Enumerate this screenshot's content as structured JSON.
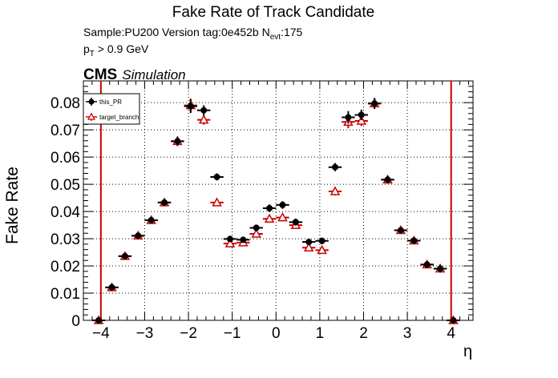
{
  "chart_data": {
    "type": "scatter",
    "title": "Fake Rate of Track Candidate",
    "subtitle_sample": "Sample:PU200   Version tag:0e452b  N",
    "subtitle_nevt_sub": "evt",
    "subtitle_nevt_val": ":175",
    "pt_p": "p",
    "pt_sub": "T",
    "pt_rest": " > 0.9 GeV",
    "cms_label": "CMS",
    "simulation_label": "Simulation",
    "xlabel": "η",
    "ylabel": "Fake Rate",
    "xlim": [
      -4.4,
      4.5
    ],
    "ylim": [
      0,
      0.088
    ],
    "xticks": [
      -4,
      -3,
      -2,
      -1,
      0,
      1,
      2,
      3,
      4
    ],
    "xtick_labels": [
      "−4",
      "−3",
      "−2",
      "−1",
      "0",
      "1",
      "2",
      "3",
      "4"
    ],
    "yticks": [
      0,
      0.01,
      0.02,
      0.03,
      0.04,
      0.05,
      0.06,
      0.07,
      0.08
    ],
    "ytick_labels": [
      "0",
      "0.01",
      "0.02",
      "0.03",
      "0.04",
      "0.05",
      "0.06",
      "0.07",
      "0.08"
    ],
    "grid": true,
    "legend_position": "top-left",
    "vlines": [
      -4.0,
      4.0
    ],
    "x": [
      -4.05,
      -3.75,
      -3.45,
      -3.15,
      -2.85,
      -2.55,
      -2.25,
      -1.95,
      -1.65,
      -1.35,
      -1.05,
      -0.75,
      -0.45,
      -0.15,
      0.15,
      0.45,
      0.75,
      1.05,
      1.35,
      1.65,
      1.95,
      2.25,
      2.55,
      2.85,
      3.15,
      3.45,
      3.75,
      4.05
    ],
    "x_err": 0.15,
    "series": [
      {
        "name": "this_PR",
        "color": "#000000",
        "marker": "circle",
        "values": [
          0.0,
          0.0121,
          0.0236,
          0.0311,
          0.0368,
          0.0433,
          0.0658,
          0.0787,
          0.0772,
          0.0527,
          0.0299,
          0.0296,
          0.034,
          0.0412,
          0.0424,
          0.0361,
          0.0288,
          0.0292,
          0.0563,
          0.0746,
          0.0755,
          0.0797,
          0.0517,
          0.0331,
          0.0293,
          0.0205,
          0.019,
          0.0
        ],
        "errors": [
          0.0003,
          0.0012,
          0.001,
          0.001,
          0.0011,
          0.0012,
          0.0017,
          0.0025,
          0.0018,
          0.0013,
          0.0011,
          0.0011,
          0.0012,
          0.0014,
          0.0014,
          0.0013,
          0.0012,
          0.0012,
          0.0015,
          0.0023,
          0.0019,
          0.002,
          0.0014,
          0.0012,
          0.0011,
          0.0012,
          0.0014,
          0.0003
        ]
      },
      {
        "name": "target_branch",
        "color": "#cc0000",
        "marker": "open-triangle",
        "values": [
          0.0,
          0.0121,
          0.0236,
          0.0311,
          0.0368,
          0.0433,
          0.0658,
          0.079,
          0.0737,
          0.0433,
          0.0282,
          0.0286,
          0.0318,
          0.0373,
          0.0378,
          0.035,
          0.0267,
          0.0258,
          0.0474,
          0.0729,
          0.0733,
          0.0797,
          0.0517,
          0.0331,
          0.0293,
          0.0205,
          0.019,
          0.0
        ],
        "errors": [
          0.0003,
          0.0012,
          0.001,
          0.001,
          0.0011,
          0.0012,
          0.0017,
          0.0025,
          0.0018,
          0.0013,
          0.0011,
          0.0011,
          0.0012,
          0.0014,
          0.0014,
          0.0013,
          0.0012,
          0.0012,
          0.0015,
          0.0023,
          0.0019,
          0.002,
          0.0014,
          0.0012,
          0.0011,
          0.0012,
          0.0014,
          0.0003
        ]
      }
    ]
  }
}
